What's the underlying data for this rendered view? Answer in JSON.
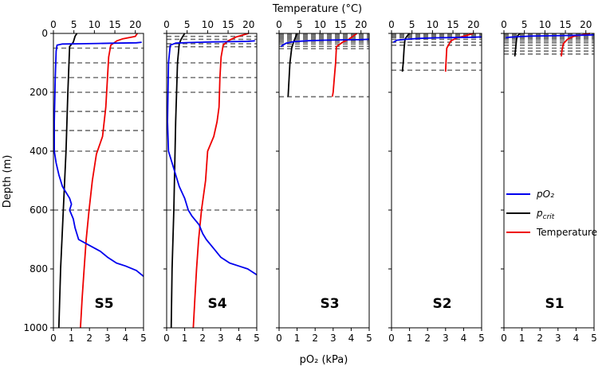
{
  "chart_data": {
    "type": "line",
    "ylabel": "Depth (m)",
    "xlabel_bottom": "pO₂ (kPa)",
    "xlabel_top": "Temperature (°C)",
    "ylim": [
      1000,
      0
    ],
    "yticks": [
      0,
      200,
      400,
      600,
      800,
      1000
    ],
    "xlim_bottom": [
      0,
      5
    ],
    "xticks_bottom": [
      0,
      1,
      2,
      3,
      4,
      5
    ],
    "xlim_top": [
      0,
      22
    ],
    "xticks_top": [
      0,
      5,
      10,
      15,
      20
    ],
    "grid": false,
    "legend": {
      "placement": "right",
      "entries": [
        {
          "name": "pO₂",
          "color": "#0000ee"
        },
        {
          "name": "p_crit",
          "color": "#000000"
        },
        {
          "name": "Temperature",
          "color": "#ee0000"
        }
      ]
    },
    "colors": {
      "po2": "#0000ee",
      "pcrit": "#000000",
      "temperature": "#ee0000",
      "sampling_depth": "#707070"
    },
    "panels": [
      {
        "station": "S5",
        "sampling_depths": [
          50,
          100,
          150,
          200,
          265,
          330,
          400,
          600
        ],
        "po2": [
          [
            4.9,
            30
          ],
          [
            4.6,
            32
          ],
          [
            3.5,
            33
          ],
          [
            2.5,
            34
          ],
          [
            1.5,
            35
          ],
          [
            0.5,
            36
          ],
          [
            0.2,
            40
          ],
          [
            0.15,
            60
          ],
          [
            0.1,
            150
          ],
          [
            0.05,
            300
          ],
          [
            0.05,
            400
          ],
          [
            0.15,
            440
          ],
          [
            0.3,
            480
          ],
          [
            0.5,
            520
          ],
          [
            0.7,
            540
          ],
          [
            0.9,
            560
          ],
          [
            1.0,
            580
          ],
          [
            0.9,
            600
          ],
          [
            1.1,
            630
          ],
          [
            1.2,
            660
          ],
          [
            1.4,
            700
          ],
          [
            2.0,
            720
          ],
          [
            2.6,
            740
          ],
          [
            3.0,
            760
          ],
          [
            3.5,
            780
          ],
          [
            4.0,
            790
          ],
          [
            4.6,
            805
          ],
          [
            5.0,
            825
          ]
        ],
        "pcrit": [
          [
            1.3,
            0
          ],
          [
            1.2,
            10
          ],
          [
            1.1,
            30
          ],
          [
            0.9,
            45
          ],
          [
            0.8,
            200
          ],
          [
            0.7,
            400
          ],
          [
            0.55,
            600
          ],
          [
            0.4,
            800
          ],
          [
            0.3,
            1000
          ]
        ],
        "temperature": [
          [
            20.5,
            0
          ],
          [
            20,
            10
          ],
          [
            17,
            18
          ],
          [
            15.5,
            25
          ],
          [
            14,
            40
          ],
          [
            13.5,
            80
          ],
          [
            13.2,
            150
          ],
          [
            12.8,
            250
          ],
          [
            12,
            350
          ],
          [
            10.5,
            410
          ],
          [
            9.5,
            500
          ],
          [
            8.7,
            600
          ],
          [
            8,
            700
          ],
          [
            7.5,
            800
          ],
          [
            7,
            900
          ],
          [
            6.6,
            1000
          ]
        ]
      },
      {
        "station": "S4",
        "sampling_depths": [
          10,
          20,
          35,
          45,
          100,
          150,
          200,
          600
        ],
        "po2": [
          [
            4.9,
            25
          ],
          [
            4.5,
            27
          ],
          [
            3.5,
            28
          ],
          [
            2.5,
            29
          ],
          [
            1.2,
            31
          ],
          [
            0.5,
            33
          ],
          [
            0.2,
            40
          ],
          [
            0.1,
            100
          ],
          [
            0.05,
            300
          ],
          [
            0.1,
            400
          ],
          [
            0.3,
            440
          ],
          [
            0.5,
            480
          ],
          [
            0.7,
            520
          ],
          [
            1.0,
            560
          ],
          [
            1.2,
            600
          ],
          [
            1.4,
            620
          ],
          [
            1.8,
            650
          ],
          [
            2.0,
            680
          ],
          [
            2.2,
            700
          ],
          [
            2.6,
            730
          ],
          [
            3.0,
            760
          ],
          [
            3.5,
            780
          ],
          [
            4.0,
            790
          ],
          [
            4.5,
            800
          ],
          [
            5.0,
            820
          ]
        ],
        "pcrit": [
          [
            1.0,
            0
          ],
          [
            0.9,
            10
          ],
          [
            0.8,
            20
          ],
          [
            0.7,
            35
          ],
          [
            0.6,
            100
          ],
          [
            0.5,
            300
          ],
          [
            0.4,
            600
          ],
          [
            0.3,
            800
          ],
          [
            0.25,
            1000
          ]
        ],
        "temperature": [
          [
            20,
            0
          ],
          [
            17,
            12
          ],
          [
            15,
            25
          ],
          [
            13.8,
            40
          ],
          [
            13.3,
            80
          ],
          [
            13,
            150
          ],
          [
            12.8,
            250
          ],
          [
            12.3,
            300
          ],
          [
            11.5,
            350
          ],
          [
            10,
            400
          ],
          [
            9.5,
            500
          ],
          [
            8.5,
            600
          ],
          [
            7.8,
            700
          ],
          [
            7.3,
            800
          ],
          [
            6.9,
            900
          ],
          [
            6.5,
            1000
          ]
        ]
      },
      {
        "station": "S3",
        "sampling_depths": [
          2,
          5,
          8,
          12,
          16,
          20,
          25,
          30,
          36,
          44,
          52,
          100,
          215
        ],
        "po2": [
          [
            5.0,
            20
          ],
          [
            4.5,
            21
          ],
          [
            3.5,
            22
          ],
          [
            2.5,
            23
          ],
          [
            1.5,
            25
          ],
          [
            0.8,
            28
          ],
          [
            0.4,
            33
          ],
          [
            0.2,
            40
          ],
          [
            0.1,
            45
          ]
        ],
        "pcrit": [
          [
            1.0,
            0
          ],
          [
            0.9,
            15
          ],
          [
            0.8,
            30
          ],
          [
            0.7,
            50
          ],
          [
            0.6,
            100
          ],
          [
            0.5,
            215
          ]
        ],
        "temperature": [
          [
            19,
            0
          ],
          [
            18,
            10
          ],
          [
            17,
            20
          ],
          [
            15.5,
            30
          ],
          [
            14,
            45
          ],
          [
            13.8,
            100
          ],
          [
            13.5,
            150
          ],
          [
            13.2,
            200
          ],
          [
            13,
            215
          ]
        ]
      },
      {
        "station": "S2",
        "sampling_depths": [
          2,
          6,
          10,
          14,
          20,
          30,
          40,
          100,
          125
        ],
        "po2": [
          [
            5.0,
            12
          ],
          [
            4.5,
            13
          ],
          [
            3.5,
            14
          ],
          [
            2.5,
            15
          ],
          [
            1.5,
            17
          ],
          [
            0.8,
            20
          ],
          [
            0.3,
            23
          ],
          [
            0.1,
            30
          ]
        ],
        "pcrit": [
          [
            1.0,
            0
          ],
          [
            0.85,
            10
          ],
          [
            0.75,
            20
          ],
          [
            0.7,
            50
          ],
          [
            0.65,
            100
          ],
          [
            0.6,
            130
          ]
        ],
        "temperature": [
          [
            20,
            0
          ],
          [
            18,
            8
          ],
          [
            16,
            15
          ],
          [
            14.5,
            25
          ],
          [
            13.5,
            50
          ],
          [
            13.3,
            100
          ],
          [
            13.2,
            130
          ]
        ]
      },
      {
        "station": "S1",
        "sampling_depths": [
          2,
          5,
          8,
          12,
          16,
          20,
          26,
          32,
          40,
          50,
          60,
          70
        ],
        "po2": [
          [
            5.0,
            5
          ],
          [
            4.5,
            6
          ],
          [
            3.5,
            7
          ],
          [
            2.5,
            8
          ],
          [
            1.5,
            9
          ],
          [
            0.8,
            11
          ],
          [
            0.3,
            13
          ],
          [
            0.1,
            15
          ]
        ],
        "pcrit": [
          [
            0.9,
            0
          ],
          [
            0.75,
            8
          ],
          [
            0.7,
            20
          ],
          [
            0.65,
            50
          ],
          [
            0.6,
            78
          ]
        ],
        "temperature": [
          [
            21,
            0
          ],
          [
            19,
            5
          ],
          [
            17,
            10
          ],
          [
            15.5,
            20
          ],
          [
            14.5,
            35
          ],
          [
            14.2,
            55
          ],
          [
            14,
            78
          ]
        ]
      }
    ]
  }
}
